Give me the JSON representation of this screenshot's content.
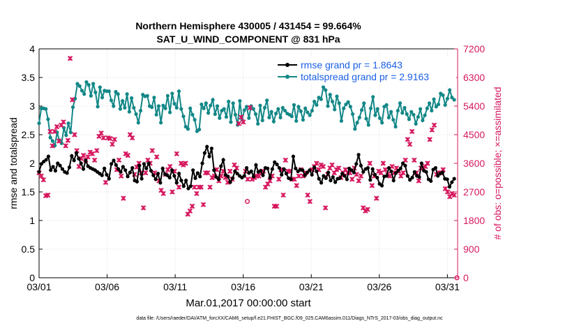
{
  "chart_data": {
    "type": "line",
    "title": "Northern Hemisphere 430005 / 431454 = 99.664%",
    "subtitle": "SAT_U_WIND_COMPONENT @ 831 hPa",
    "xlabel": "Mar.01,2017 00:00:00 start",
    "ylabel": "rmse and totalspread",
    "y2label": "# of obs: o=possible; ×=assimilated",
    "x_tick_labels": [
      "03/01",
      "03/06",
      "03/11",
      "03/16",
      "03/21",
      "03/26",
      "03/31"
    ],
    "x_tick_days": [
      0,
      5,
      10,
      15,
      20,
      25,
      30
    ],
    "xlim": [
      0,
      30.75
    ],
    "ylim": [
      0,
      4
    ],
    "y_ticks": [
      0,
      0.5,
      1,
      1.5,
      2,
      2.5,
      3,
      3.5,
      4
    ],
    "y_tick_labels": [
      "0",
      "0.5",
      "1",
      "1.5",
      "2",
      "2.5",
      "3",
      "3.5",
      "4"
    ],
    "y2lim": [
      0,
      7200
    ],
    "y2_ticks": [
      0,
      900,
      1800,
      2700,
      3600,
      4500,
      5400,
      6300,
      7200
    ],
    "y2_tick_labels": [
      "0",
      "900",
      "1800",
      "2700",
      "3600",
      "4500",
      "5400",
      "6300",
      "7200"
    ],
    "grid": true,
    "legend_position": "top-right",
    "colors": {
      "rmse": "#000000",
      "spread": "#138787",
      "obs": "#d6185f",
      "legend_text": "#1a5ee6"
    },
    "series": [
      {
        "name": "rmse grand pr = 1.8643",
        "axis": "left",
        "values": [
          1.85,
          1.99,
          2.03,
          2.06,
          2.12,
          1.88,
          1.94,
          1.87,
          2.0,
          1.96,
          1.9,
          1.85,
          1.83,
          1.93,
          2.13,
          2.05,
          2.18,
          2.08,
          2.0,
          1.9,
          2.05,
          1.95,
          1.92,
          1.9,
          1.88,
          1.85,
          1.82,
          1.79,
          1.91,
          1.8,
          1.73,
          1.99,
          2.05,
          1.97,
          1.9,
          1.85,
          1.94,
          1.88,
          1.77,
          1.84,
          1.92,
          1.7,
          1.68,
          1.96,
          1.73,
          1.99,
          1.91,
          2.0,
          1.87,
          1.79,
          1.72,
          1.82,
          1.66,
          1.91,
          1.81,
          1.79,
          1.75,
          1.88,
          1.78,
          1.66,
          1.82,
          1.7,
          1.6,
          1.7,
          1.56,
          1.6,
          1.88,
          1.74,
          1.83,
          1.77,
          2.0,
          2.18,
          2.29,
          2.12,
          2.26,
          1.88,
          1.76,
          1.72,
          1.95,
          2.06,
          1.8,
          1.77,
          1.67,
          1.74,
          1.86,
          1.82,
          1.78,
          1.75,
          1.78,
          1.92,
          1.83,
          1.86,
          1.77,
          1.97,
          1.85,
          1.87,
          1.79,
          1.92,
          1.91,
          1.75,
          1.9,
          2.02,
          1.98,
          1.92,
          1.8,
          1.9,
          1.82,
          1.74,
          1.72,
          2.12,
          1.91,
          1.86,
          1.89,
          1.88,
          1.79,
          1.84,
          1.88,
          1.8,
          1.93,
          1.86,
          1.73,
          1.66,
          1.78,
          1.74,
          1.84,
          1.7,
          1.76,
          1.67,
          1.73,
          1.74,
          1.82,
          1.78,
          1.72,
          1.91,
          1.88,
          1.84,
          1.99,
          2.15,
          1.96,
          1.85,
          1.9,
          1.92,
          1.71,
          1.9,
          1.8,
          1.75,
          1.64,
          1.61,
          1.77,
          1.78,
          1.92,
          1.86,
          1.7,
          1.83,
          1.87,
          1.91,
          2.0,
          1.96,
          1.78,
          1.71,
          1.75,
          1.85,
          1.78,
          1.76,
          2.0,
          1.87,
          1.85,
          1.72,
          1.69,
          1.89,
          1.92,
          1.78,
          1.82,
          1.84,
          1.73,
          1.72,
          1.59,
          1.67,
          1.73
        ]
      },
      {
        "name": "totalspread grand pr = 2.9163",
        "axis": "left",
        "values": [
          2.7,
          2.96,
          2.96,
          2.95,
          2.77,
          2.45,
          2.39,
          2.31,
          2.54,
          2.4,
          2.35,
          2.62,
          2.49,
          2.7,
          2.54,
          2.98,
          3.13,
          3.39,
          3.35,
          3.27,
          3.21,
          3.42,
          3.37,
          3.18,
          3.39,
          3.24,
          2.99,
          3.33,
          3.15,
          3.27,
          3.26,
          3.26,
          3.1,
          3.0,
          3.25,
          3.21,
          2.95,
          3.09,
          2.97,
          3.21,
          2.9,
          3.14,
          2.97,
          2.86,
          2.71,
          2.92,
          3.2,
          3.17,
          3.18,
          3.0,
          2.98,
          3.15,
          2.85,
          3.0,
          2.71,
          3.01,
          2.96,
          3.18,
          2.89,
          3.22,
          3.04,
          2.97,
          3.26,
          2.95,
          2.82,
          2.64,
          2.6,
          2.96,
          2.85,
          2.76,
          2.56,
          2.59,
          3.03,
          2.96,
          3.05,
          2.88,
          3.01,
          3.11,
          2.86,
          3.0,
          2.79,
          2.92,
          2.95,
          2.81,
          3.08,
          2.72,
          3.05,
          2.85,
          2.67,
          3.09,
          2.76,
          2.93,
          2.99,
          2.79,
          3.0,
          2.95,
          2.86,
          2.69,
          3.01,
          2.75,
          2.97,
          3.1,
          2.8,
          2.9,
          2.73,
          2.87,
          2.95,
          2.8,
          2.97,
          2.92,
          2.87,
          2.85,
          2.82,
          3.02,
          2.74,
          2.99,
          2.91,
          2.76,
          2.96,
          2.89,
          2.84,
          2.92,
          3.08,
          3.02,
          3.15,
          3.12,
          3.33,
          3.28,
          3.0,
          3.2,
          3.08,
          2.94,
          3.17,
          3.05,
          2.74,
          2.96,
          3.03,
          3.07,
          2.99,
          2.86,
          2.6,
          2.71,
          2.8,
          2.93,
          3.05,
          2.78,
          2.67,
          2.96,
          3.16,
          2.84,
          2.95,
          2.79,
          2.71,
          2.99,
          3.02,
          2.8,
          2.9,
          2.76,
          2.64,
          2.92,
          3.05,
          2.88,
          2.97,
          2.86,
          2.77,
          2.9,
          2.85,
          2.69,
          2.81,
          2.95,
          2.75,
          2.84,
          2.96,
          3.05,
          2.92,
          3.12,
          2.99,
          3.03,
          3.22,
          3.19,
          3.02,
          3.13,
          3.28,
          3.15,
          3.11
        ]
      },
      {
        "name": "# of obs assimilated",
        "axis": "right",
        "marker": "x",
        "values": [
          3300,
          3200,
          3080,
          2580,
          2600,
          4600,
          4150,
          4600,
          4750,
          4300,
          4800,
          4900,
          4150,
          4320,
          6900,
          5600,
          4500,
          4000,
          3500,
          3750,
          3850,
          3700,
          3800,
          3950,
          3900,
          3700,
          4000,
          4450,
          4550,
          4400,
          3000,
          4400,
          4380,
          4200,
          4350,
          3400,
          3700,
          3200,
          2500,
          3900,
          3850,
          4500,
          4400,
          3250,
          3480,
          3600,
          3300,
          2200,
          3300,
          3700,
          3600,
          4000,
          3300,
          3800,
          3050,
          2750,
          2650,
          3250,
          3400,
          3500,
          2700,
          3350,
          3900,
          2850,
          3600,
          3550,
          3600,
          2000,
          2100,
          2250,
          2850,
          2650,
          2850,
          2850,
          2300,
          3300,
          3300,
          2850,
          3150,
          3200,
          3400,
          3050,
          3200,
          3350,
          3150,
          3000,
          3350,
          3100,
          3550,
          3450,
          4850,
          5050,
          4900,
          3350,
          3100,
          5350,
          3100,
          3150,
          3200,
          3200,
          3300,
          3350,
          2850,
          2950,
          3050,
          3200,
          2250,
          2250,
          3100,
          3400,
          2600,
          3700,
          3350,
          3350,
          3100,
          3100,
          2900,
          3200,
          3400,
          3200,
          3300,
          2600,
          2400,
          3400,
          3500,
          3600,
          3400,
          3550,
          3500,
          2200,
          3250,
          3450,
          3550,
          3300,
          3400,
          3450,
          3150,
          3300,
          3400,
          3300,
          3300,
          3100,
          3450,
          3250,
          3050,
          3200,
          2200,
          2100,
          2150,
          3600,
          2900,
          3200,
          2500,
          3350,
          3300,
          3600,
          3400,
          3250,
          3200,
          3500,
          3300,
          3450,
          3350,
          3200,
          3300,
          3700,
          4350,
          4200,
          4600,
          3700,
          3300,
          3050,
          3450,
          3450,
          3500,
          3600,
          4350,
          4650,
          4800,
          3250,
          3300,
          3300,
          3400,
          2800,
          2700,
          2550,
          2650,
          2600
        ]
      },
      {
        "name": "# of obs possible",
        "axis": "right",
        "marker": "o",
        "values": [
          0
        ]
      }
    ],
    "possible_markers": [
      {
        "day": 15.3,
        "value": 2400
      },
      {
        "day": 30.7,
        "value": 0
      }
    ]
  }
}
